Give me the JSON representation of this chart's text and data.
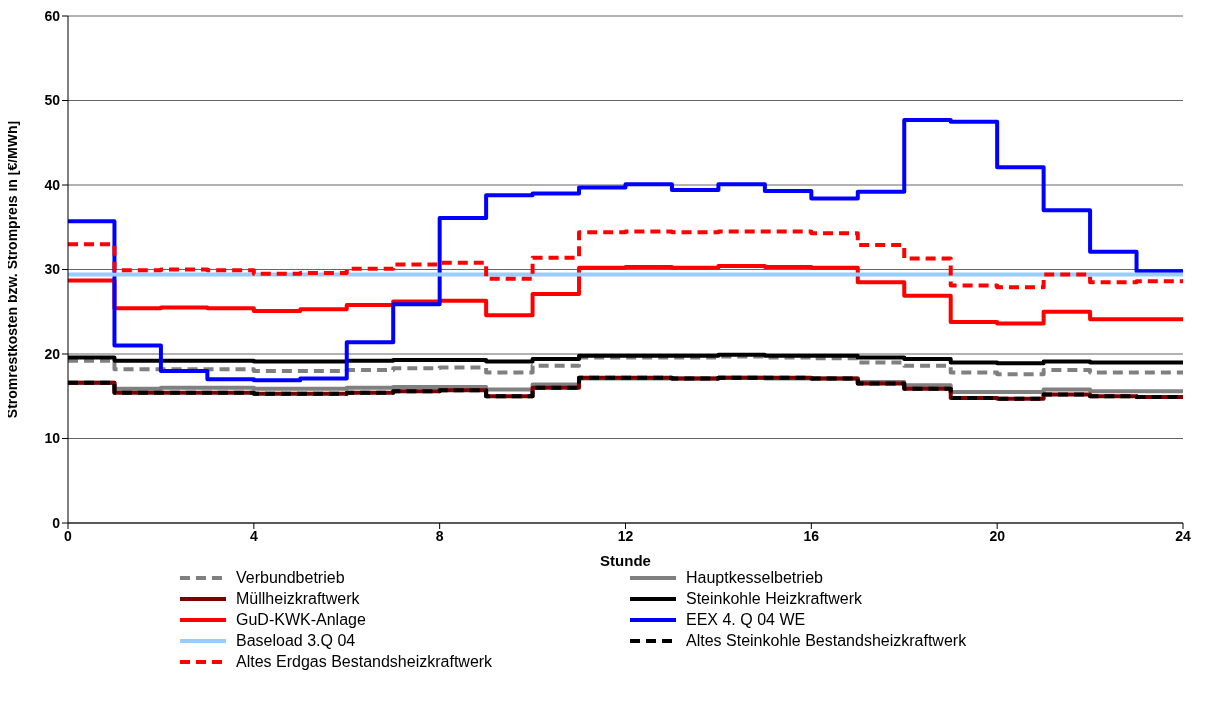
{
  "chart_data": {
    "type": "step",
    "xlabel": "Stunde",
    "ylabel": "Stromrestkosten bzw. Strompreis in [€/MWh]",
    "x": [
      0,
      1,
      2,
      3,
      4,
      5,
      6,
      7,
      8,
      9,
      10,
      11,
      12,
      13,
      14,
      15,
      16,
      17,
      18,
      19,
      20,
      21,
      22,
      23,
      24
    ],
    "xlim": [
      0,
      24
    ],
    "xticks": [
      0,
      4,
      8,
      12,
      16,
      20,
      24
    ],
    "ylim": [
      0,
      60
    ],
    "yticks": [
      0,
      10,
      20,
      30,
      40,
      50,
      60
    ],
    "grid": "y",
    "legend": "bottom",
    "marker": "none",
    "series": [
      {
        "name": "Verbundbetrieb",
        "color": "#808080",
        "line_style": "dashed",
        "values": [
          19.2,
          18.2,
          18.2,
          18.2,
          18.0,
          18.0,
          18.1,
          18.3,
          18.4,
          17.8,
          18.6,
          19.6,
          19.6,
          19.6,
          19.7,
          19.6,
          19.5,
          19.0,
          18.6,
          17.8,
          17.6,
          18.1,
          17.8,
          17.8,
          17.8
        ]
      },
      {
        "name": "Hauptkesselbetrieb",
        "color": "#808080",
        "line_style": "solid",
        "values": [
          16.6,
          15.9,
          16.0,
          16.0,
          15.9,
          15.9,
          16.0,
          16.1,
          16.1,
          15.8,
          16.4,
          17.1,
          17.1,
          17.1,
          17.2,
          17.1,
          17.1,
          16.7,
          16.3,
          15.5,
          15.5,
          15.8,
          15.6,
          15.6,
          15.6
        ]
      },
      {
        "name": "Müllheizkraftwerk",
        "color": "#800000",
        "line_style": "solid",
        "values": [
          16.6,
          15.4,
          15.4,
          15.4,
          15.3,
          15.3,
          15.4,
          15.6,
          15.7,
          15.0,
          16.0,
          17.2,
          17.2,
          17.1,
          17.2,
          17.2,
          17.1,
          16.5,
          15.9,
          14.8,
          14.7,
          15.2,
          15.0,
          14.9,
          14.9
        ]
      },
      {
        "name": "Steinkohle Heizkraftwerk",
        "color": "#000000",
        "line_style": "solid",
        "values": [
          19.6,
          19.2,
          19.2,
          19.2,
          19.1,
          19.1,
          19.2,
          19.3,
          19.3,
          19.1,
          19.4,
          19.8,
          19.8,
          19.8,
          19.9,
          19.8,
          19.8,
          19.6,
          19.4,
          19.0,
          18.9,
          19.1,
          19.0,
          19.0,
          19.0
        ]
      },
      {
        "name": "GuD-KWK-Anlage",
        "color": "#ff0000",
        "line_style": "solid",
        "values": [
          28.7,
          25.4,
          25.5,
          25.4,
          25.1,
          25.3,
          25.8,
          26.2,
          26.3,
          24.6,
          27.1,
          30.2,
          30.3,
          30.2,
          30.4,
          30.3,
          30.2,
          28.5,
          26.9,
          23.8,
          23.6,
          25.0,
          24.1,
          24.1,
          24.1
        ]
      },
      {
        "name": "EEX 4. Q 04 WE",
        "color": "#0000ff",
        "line_style": "solid",
        "values": [
          35.7,
          21.0,
          18.0,
          17.0,
          16.9,
          17.1,
          21.4,
          25.9,
          36.1,
          38.8,
          39.0,
          39.7,
          40.1,
          39.4,
          40.1,
          39.3,
          38.4,
          39.2,
          47.7,
          47.5,
          42.1,
          37.0,
          32.1,
          29.8,
          29.8
        ]
      },
      {
        "name": "Baseload 3.Q 04",
        "color": "#99ccff",
        "line_style": "solid",
        "values": [
          29.4,
          29.4,
          29.4,
          29.4,
          29.4,
          29.4,
          29.4,
          29.4,
          29.4,
          29.4,
          29.4,
          29.4,
          29.4,
          29.4,
          29.4,
          29.4,
          29.4,
          29.4,
          29.4,
          29.4,
          29.4,
          29.4,
          29.4,
          29.4,
          29.4
        ]
      },
      {
        "name": "Altes Steinkohle Bestandsheizkraftwerk",
        "color": "#000000",
        "line_style": "dashed",
        "values": [
          16.6,
          15.4,
          15.4,
          15.4,
          15.3,
          15.3,
          15.4,
          15.6,
          15.7,
          15.0,
          16.0,
          17.2,
          17.2,
          17.1,
          17.2,
          17.2,
          17.1,
          16.5,
          15.9,
          14.8,
          14.7,
          15.2,
          15.0,
          14.9,
          14.9
        ]
      },
      {
        "name": "Altes Erdgas Bestandsheizkraftwerk",
        "color": "#ff0000",
        "line_style": "dashed",
        "values": [
          33.0,
          29.9,
          30.0,
          29.9,
          29.5,
          29.6,
          30.1,
          30.6,
          30.8,
          28.9,
          31.4,
          34.4,
          34.5,
          34.4,
          34.5,
          34.5,
          34.3,
          32.9,
          31.3,
          28.1,
          27.9,
          29.4,
          28.5,
          28.6,
          28.6
        ]
      }
    ]
  }
}
